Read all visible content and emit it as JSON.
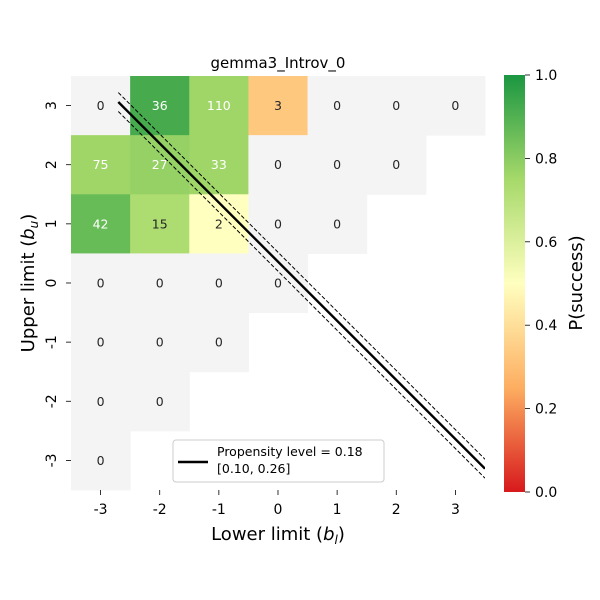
{
  "chart_data": {
    "type": "heatmap",
    "title": "gemma3_Introv_0",
    "xlabel_main": "Lower limit (",
    "xlabel_var": "b",
    "xlabel_sub": "l",
    "xlabel_close": ")",
    "ylabel_main": "Upper limit (",
    "ylabel_var": "b",
    "ylabel_sub": "u",
    "ylabel_close": ")",
    "x_ticks": [
      "-3",
      "-2",
      "-1",
      "0",
      "1",
      "2",
      "3"
    ],
    "y_ticks": [
      "3",
      "2",
      "1",
      "0",
      "-1",
      "-2",
      "-3"
    ],
    "x_values": [
      -3,
      -2,
      -1,
      0,
      1,
      2,
      3
    ],
    "y_values": [
      3,
      2,
      1,
      0,
      -1,
      -2,
      -3
    ],
    "cells": [
      {
        "x": -3,
        "y": 3,
        "count": "0",
        "p": null
      },
      {
        "x": -2,
        "y": 3,
        "count": "36",
        "p": 0.92
      },
      {
        "x": -1,
        "y": 3,
        "count": "110",
        "p": 0.76
      },
      {
        "x": 0,
        "y": 3,
        "count": "3",
        "p": 0.33
      },
      {
        "x": 1,
        "y": 3,
        "count": "0",
        "p": null
      },
      {
        "x": 2,
        "y": 3,
        "count": "0",
        "p": null
      },
      {
        "x": 3,
        "y": 3,
        "count": "0",
        "p": null
      },
      {
        "x": -3,
        "y": 2,
        "count": "75",
        "p": 0.76
      },
      {
        "x": -2,
        "y": 2,
        "count": "27",
        "p": 0.78
      },
      {
        "x": -1,
        "y": 2,
        "count": "33",
        "p": 0.76
      },
      {
        "x": 0,
        "y": 2,
        "count": "0",
        "p": null
      },
      {
        "x": 1,
        "y": 2,
        "count": "0",
        "p": null
      },
      {
        "x": 2,
        "y": 2,
        "count": "0",
        "p": null
      },
      {
        "x": -3,
        "y": 1,
        "count": "42",
        "p": 0.86
      },
      {
        "x": -2,
        "y": 1,
        "count": "15",
        "p": 0.73
      },
      {
        "x": -1,
        "y": 1,
        "count": "2",
        "p": 0.5
      },
      {
        "x": 0,
        "y": 1,
        "count": "0",
        "p": null
      },
      {
        "x": 1,
        "y": 1,
        "count": "0",
        "p": null
      },
      {
        "x": -3,
        "y": 0,
        "count": "0",
        "p": null
      },
      {
        "x": -2,
        "y": 0,
        "count": "0",
        "p": null
      },
      {
        "x": -1,
        "y": 0,
        "count": "0",
        "p": null
      },
      {
        "x": 0,
        "y": 0,
        "count": "0",
        "p": null
      },
      {
        "x": -3,
        "y": -1,
        "count": "0",
        "p": null
      },
      {
        "x": -2,
        "y": -1,
        "count": "0",
        "p": null
      },
      {
        "x": -1,
        "y": -1,
        "count": "0",
        "p": null
      },
      {
        "x": -3,
        "y": -2,
        "count": "0",
        "p": null
      },
      {
        "x": -2,
        "y": -2,
        "count": "0",
        "p": null
      },
      {
        "x": -3,
        "y": -3,
        "count": "0",
        "p": null
      }
    ],
    "empty_cell_color": "#f4f4f4",
    "colorbar": {
      "label": "P(success)",
      "range": [
        0.0,
        1.0
      ],
      "ticks": [
        "0.0",
        "0.2",
        "0.4",
        "0.6",
        "0.8",
        "1.0"
      ],
      "colors": [
        "#d7191c",
        "#fdae61",
        "#ffffbf",
        "#a6d96a",
        "#1a9641"
      ]
    },
    "propensity_line": {
      "level": 0.18,
      "ci": [
        0.1,
        0.26
      ],
      "slope": -1,
      "intercept": 0.36,
      "ci_offset": 0.16,
      "x_range": [
        -2.7,
        3.5
      ]
    },
    "legend": {
      "line1": "Propensity level = 0.18",
      "line2": "[0.10, 0.26]",
      "placement": "bottom-center"
    }
  }
}
